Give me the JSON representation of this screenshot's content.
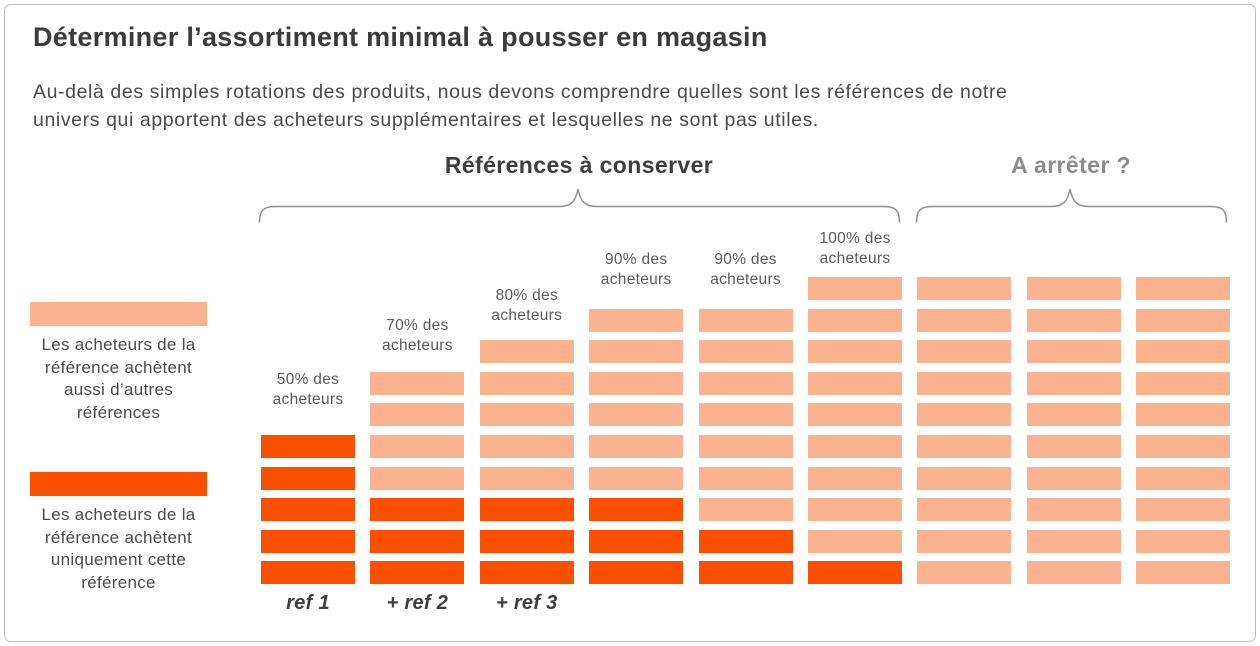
{
  "page": {
    "title": "Déterminer l’assortiment minimal à pousser en magasin",
    "subtitle_lines": [
      "Au-delà des simples rotations des produits, nous devons comprendre quelles sont les références de notre",
      "univers qui apportent des acheteurs supplémentaires et lesquelles ne sont pas utiles."
    ]
  },
  "groups": {
    "keep": {
      "label": "Références à conserver"
    },
    "stop": {
      "label": "A arrêter ?"
    }
  },
  "legend": {
    "other_refs": {
      "lines": [
        "Les acheteurs de la",
        "référence achètent",
        "aussi d’autres",
        "références"
      ],
      "color": "#FBB38F"
    },
    "only_ref": {
      "lines": [
        "Les acheteurs de la",
        "référence achètent",
        "uniquement cette",
        "référence"
      ],
      "color": "#FB4F00"
    }
  },
  "colors": {
    "dark_orange": "#FB4F00",
    "light_orange": "#FBB38F"
  },
  "chart_data": {
    "type": "bar",
    "title": "Déterminer l’assortiment minimal à pousser en magasin",
    "max_blocks_per_column": 10,
    "legend": [
      "Les acheteurs de la référence achètent aussi d’autres références (light)",
      "Les acheteurs de la référence achètent uniquement cette référence (dark)"
    ],
    "columns": [
      {
        "group": "keep",
        "buyers_label": "50% des acheteurs",
        "label_lines": [
          "50% des",
          "acheteurs"
        ],
        "ref_label": "ref 1",
        "total_blocks": 5,
        "dark_blocks": 5,
        "light_blocks": 0
      },
      {
        "group": "keep",
        "buyers_label": "70% des acheteurs",
        "label_lines": [
          "70% des",
          "acheteurs"
        ],
        "ref_label": "+ ref 2",
        "total_blocks": 7,
        "dark_blocks": 3,
        "light_blocks": 4
      },
      {
        "group": "keep",
        "buyers_label": "80% des acheteurs",
        "label_lines": [
          "80% des",
          "acheteurs"
        ],
        "ref_label": "+ ref 3",
        "total_blocks": 8,
        "dark_blocks": 3,
        "light_blocks": 5
      },
      {
        "group": "keep",
        "buyers_label": "90% des acheteurs",
        "label_lines": [
          "90% des",
          "acheteurs"
        ],
        "ref_label": null,
        "total_blocks": 9,
        "dark_blocks": 3,
        "light_blocks": 6
      },
      {
        "group": "keep",
        "buyers_label": "90% des acheteurs",
        "label_lines": [
          "90% des",
          "acheteurs"
        ],
        "ref_label": null,
        "total_blocks": 9,
        "dark_blocks": 2,
        "light_blocks": 7
      },
      {
        "group": "keep",
        "buyers_label": "100% des acheteurs",
        "label_lines": [
          "100% des",
          "acheteurs"
        ],
        "ref_label": null,
        "total_blocks": 10,
        "dark_blocks": 1,
        "light_blocks": 9
      },
      {
        "group": "stop",
        "buyers_label": null,
        "label_lines": null,
        "ref_label": null,
        "total_blocks": 10,
        "dark_blocks": 0,
        "light_blocks": 10
      },
      {
        "group": "stop",
        "buyers_label": null,
        "label_lines": null,
        "ref_label": null,
        "total_blocks": 10,
        "dark_blocks": 0,
        "light_blocks": 10
      },
      {
        "group": "stop",
        "buyers_label": null,
        "label_lines": null,
        "ref_label": null,
        "total_blocks": 10,
        "dark_blocks": 0,
        "light_blocks": 10
      }
    ]
  }
}
